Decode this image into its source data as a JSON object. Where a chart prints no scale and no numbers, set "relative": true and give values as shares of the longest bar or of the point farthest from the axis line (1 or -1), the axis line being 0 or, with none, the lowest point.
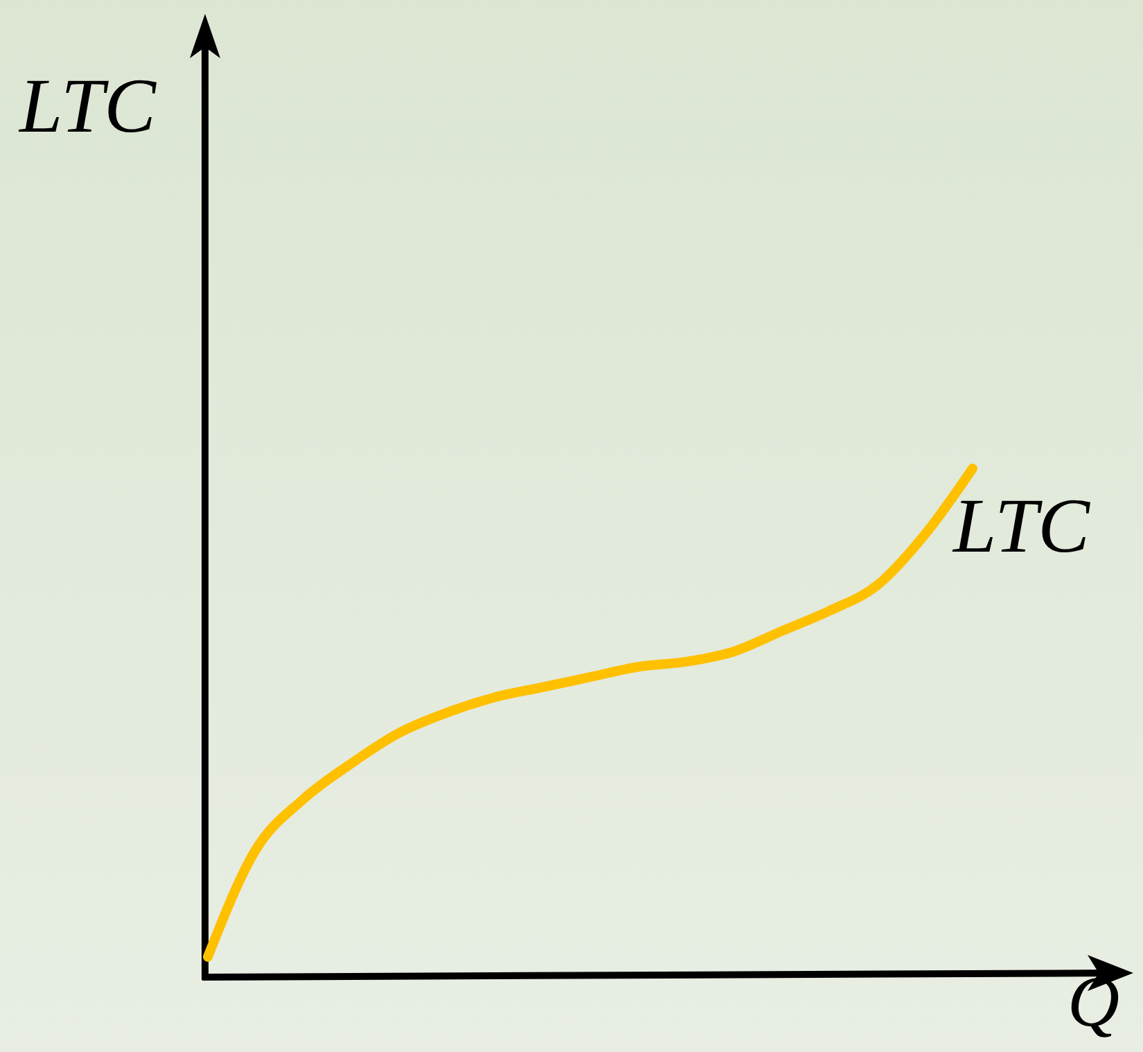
{
  "chart_data": {
    "type": "line",
    "relative": true,
    "xlabel": "Q",
    "ylabel": "LTC",
    "categories": [
      null,
      null,
      null,
      null,
      null,
      null,
      null,
      null,
      null,
      null,
      null,
      null,
      null,
      null,
      null,
      null,
      null
    ],
    "series": [
      {
        "name": "LTC",
        "color": "#ffc000",
        "values": [
          0.04,
          0.25,
          0.35,
          0.42,
          0.48,
          0.52,
          0.55,
          0.57,
          0.59,
          0.61,
          0.62,
          0.64,
          0.68,
          0.72,
          0.77,
          0.87,
          1
        ]
      }
    ],
    "marker": "none",
    "line_style": "solid"
  }
}
